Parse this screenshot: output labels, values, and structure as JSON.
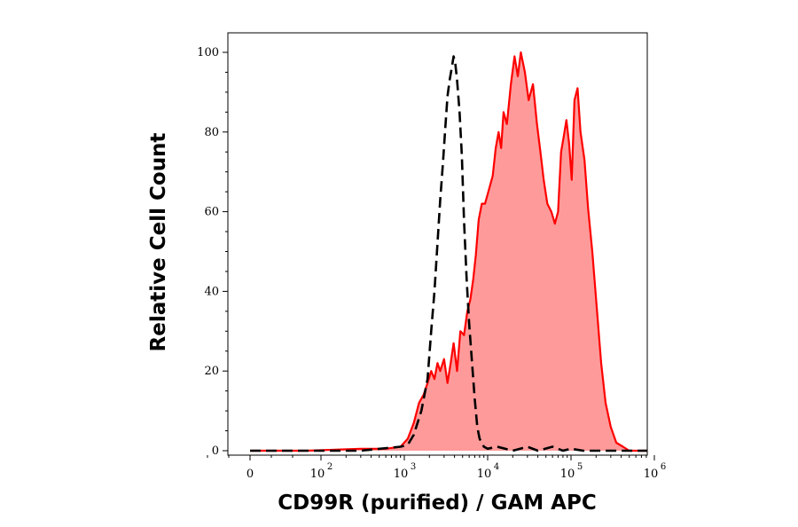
{
  "chart_data": {
    "type": "area",
    "xlabel": "CD99R (purified) / GAM APC",
    "ylabel": "Relative Cell Count",
    "x_scale": "log (biexponential, 0 shown)",
    "ylim": [
      0,
      100
    ],
    "y_ticks": [
      0,
      20,
      40,
      60,
      80,
      100
    ],
    "x_ticks": [
      {
        "value": 0,
        "base": "0",
        "exp": ""
      },
      {
        "value": 100,
        "base": "10",
        "exp": "2"
      },
      {
        "value": 1000,
        "base": "10",
        "exp": "3"
      },
      {
        "value": 10000,
        "base": "10",
        "exp": "4"
      },
      {
        "value": 100000,
        "base": "10",
        "exp": "5"
      },
      {
        "value": 1000000,
        "base": "10",
        "exp": "6"
      }
    ],
    "series": [
      {
        "style": "filled",
        "color": "#ff0000",
        "fill": "#ff9a9a",
        "points": [
          [
            0,
            0
          ],
          [
            80,
            0
          ],
          [
            300,
            0.5
          ],
          [
            600,
            0.5
          ],
          [
            900,
            1
          ],
          [
            1100,
            3
          ],
          [
            1300,
            7
          ],
          [
            1500,
            12
          ],
          [
            1700,
            14
          ],
          [
            1900,
            17
          ],
          [
            2100,
            20
          ],
          [
            2300,
            18
          ],
          [
            2500,
            22
          ],
          [
            2700,
            20
          ],
          [
            3000,
            23
          ],
          [
            3300,
            17
          ],
          [
            3600,
            22
          ],
          [
            3900,
            27
          ],
          [
            4300,
            20
          ],
          [
            4700,
            30
          ],
          [
            5200,
            29
          ],
          [
            5700,
            35
          ],
          [
            6200,
            38
          ],
          [
            6700,
            43
          ],
          [
            7200,
            49
          ],
          [
            7800,
            58
          ],
          [
            8500,
            62
          ],
          [
            9300,
            62
          ],
          [
            10500,
            66
          ],
          [
            11500,
            69
          ],
          [
            12500,
            76
          ],
          [
            13500,
            80
          ],
          [
            14500,
            76
          ],
          [
            15500,
            85
          ],
          [
            17000,
            82
          ],
          [
            19000,
            92
          ],
          [
            21000,
            99
          ],
          [
            23000,
            94
          ],
          [
            25000,
            100
          ],
          [
            28000,
            95
          ],
          [
            31000,
            88
          ],
          [
            35000,
            92
          ],
          [
            39000,
            82
          ],
          [
            43000,
            75
          ],
          [
            47000,
            68
          ],
          [
            52000,
            62
          ],
          [
            58000,
            60
          ],
          [
            64000,
            57
          ],
          [
            70000,
            60
          ],
          [
            76000,
            75
          ],
          [
            82000,
            79
          ],
          [
            88000,
            83
          ],
          [
            95000,
            77
          ],
          [
            102000,
            68
          ],
          [
            110000,
            88
          ],
          [
            120000,
            91
          ],
          [
            130000,
            80
          ],
          [
            145000,
            73
          ],
          [
            160000,
            61
          ],
          [
            180000,
            50
          ],
          [
            200000,
            38
          ],
          [
            230000,
            22
          ],
          [
            260000,
            12
          ],
          [
            300000,
            6
          ],
          [
            350000,
            2
          ],
          [
            420000,
            1
          ],
          [
            500000,
            0
          ],
          [
            1000000,
            0
          ]
        ]
      },
      {
        "style": "dashed",
        "color": "#000000",
        "points": [
          [
            0,
            0
          ],
          [
            300,
            0
          ],
          [
            900,
            1
          ],
          [
            1100,
            1.5
          ],
          [
            1300,
            4
          ],
          [
            1600,
            10
          ],
          [
            1900,
            18
          ],
          [
            2100,
            30
          ],
          [
            2300,
            40
          ],
          [
            2500,
            52
          ],
          [
            2700,
            63
          ],
          [
            2900,
            72
          ],
          [
            3100,
            81
          ],
          [
            3300,
            89
          ],
          [
            3500,
            93
          ],
          [
            3700,
            96
          ],
          [
            3900,
            99
          ],
          [
            4100,
            97
          ],
          [
            4300,
            93
          ],
          [
            4600,
            85
          ],
          [
            4900,
            74
          ],
          [
            5200,
            58
          ],
          [
            5600,
            43
          ],
          [
            6000,
            32
          ],
          [
            6500,
            22
          ],
          [
            7000,
            13
          ],
          [
            7500,
            6
          ],
          [
            8000,
            3
          ],
          [
            9000,
            1
          ],
          [
            10000,
            0.5
          ],
          [
            13000,
            1
          ],
          [
            20000,
            0
          ],
          [
            30000,
            1
          ],
          [
            40000,
            0
          ],
          [
            60000,
            1
          ],
          [
            80000,
            0
          ],
          [
            100000,
            0.5
          ],
          [
            140000,
            0
          ],
          [
            1000000,
            0
          ]
        ]
      }
    ]
  }
}
